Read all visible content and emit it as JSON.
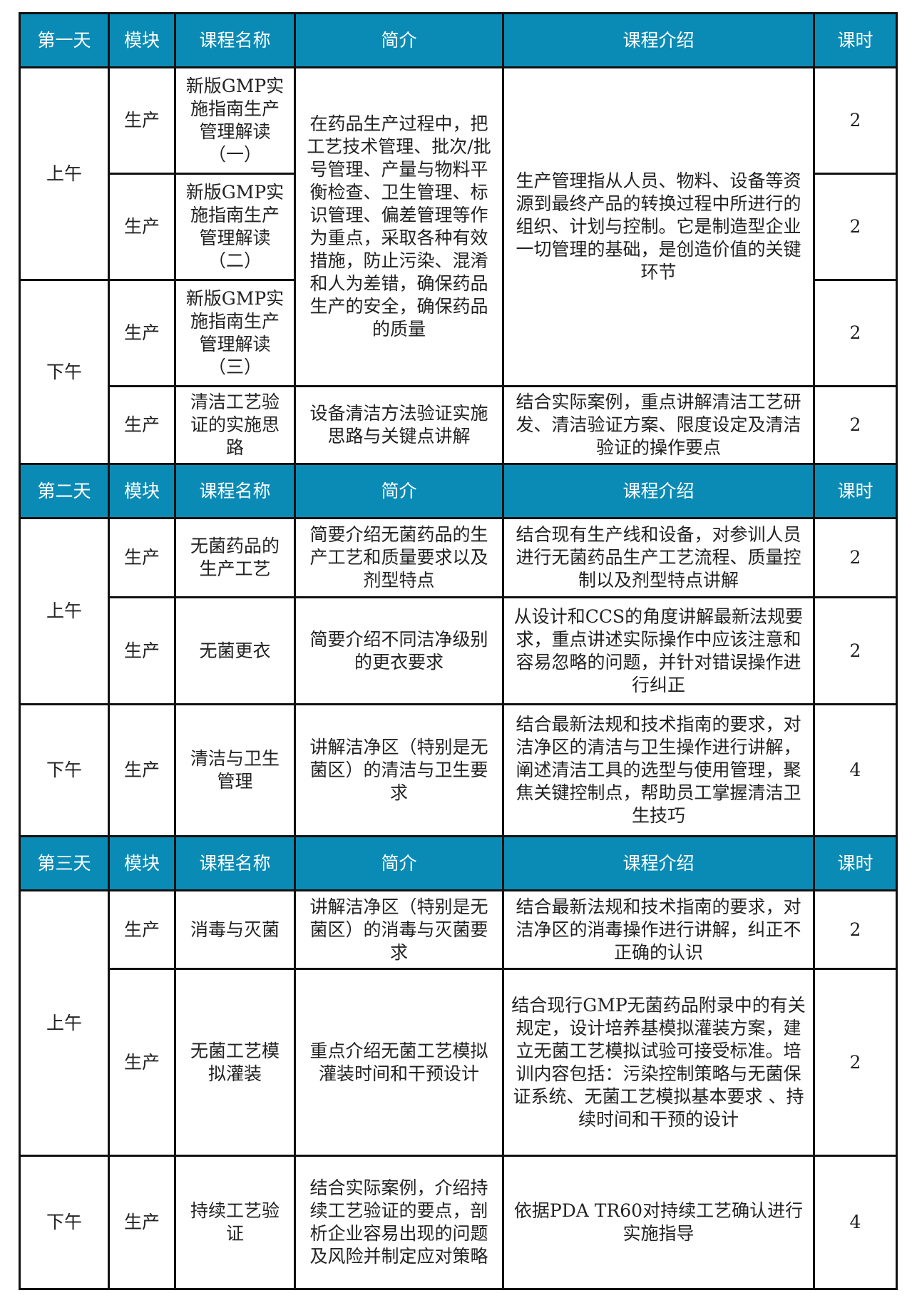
{
  "header_color": "#0a8bb5",
  "columns": [
    "模块",
    "课程名称",
    "简介",
    "课程介绍",
    "课时"
  ],
  "days": [
    {
      "label": "第一天",
      "rows": [
        {
          "period": "上午",
          "period_span": 2,
          "module": "生产",
          "course": "新版GMP实施指南生产管理解读（一）",
          "summary": "在药品生产过程中，把工艺技术管理、批次/批号管理、产量与物料平衡检查、卫生管理、标识管理、偏差管理等作为重点，采取各种有效措施，防止污染、混淆和人为差错，确保药品生产的安全，确保药品的质量",
          "summary_span": 3,
          "detail": "生产管理指从人员、物料、设备等资源到最终产品的转换过程中所进行的组织、计划与控制。它是制造型企业一切管理的基础，是创造价值的关键环节",
          "detail_span": 3,
          "hours": "2"
        },
        {
          "module": "生产",
          "course": "新版GMP实施指南生产管理解读（二）",
          "hours": "2"
        },
        {
          "period": "下午",
          "period_span": 2,
          "module": "生产",
          "course": "新版GMP实施指南生产管理解读（三）",
          "hours": "2"
        },
        {
          "module": "生产",
          "course": "清洁工艺验证的实施思路",
          "summary": "设备清洁方法验证实施思路与关键点讲解",
          "summary_span": 1,
          "detail": "结合实际案例，重点讲解清洁工艺研发、清洁验证方案、限度设定及清洁验证的操作要点",
          "detail_span": 1,
          "hours": "2"
        }
      ]
    },
    {
      "label": "第二天",
      "rows": [
        {
          "period": "上午",
          "period_span": 2,
          "module": "生产",
          "course": "无菌药品的生产工艺",
          "summary": "简要介绍无菌药品的生产工艺和质量要求以及剂型特点",
          "summary_span": 1,
          "detail": "结合现有生产线和设备，对参训人员进行无菌药品生产工艺流程、质量控制以及剂型特点讲解",
          "detail_span": 1,
          "hours": "2"
        },
        {
          "module": "生产",
          "course": "无菌更衣",
          "summary": "简要介绍不同洁净级别的更衣要求",
          "summary_span": 1,
          "detail": "从设计和CCS的角度讲解最新法规要求，重点讲述实际操作中应该注意和容易忽略的问题，并针对错误操作进行纠正",
          "detail_span": 1,
          "hours": "2"
        },
        {
          "period": "下午",
          "period_span": 1,
          "module": "生产",
          "course": "清洁与卫生管理",
          "summary": "讲解洁净区（特别是无菌区）的清洁与卫生要求",
          "summary_span": 1,
          "detail": "结合最新法规和技术指南的要求，对洁净区的清洁与卫生操作进行讲解，阐述清洁工具的选型与使用管理，聚焦关键控制点，帮助员工掌握清洁卫生技巧",
          "detail_span": 1,
          "hours": "4"
        }
      ]
    },
    {
      "label": "第三天",
      "rows": [
        {
          "period": "上午",
          "period_span": 2,
          "module": "生产",
          "course": "消毒与灭菌",
          "summary": "讲解洁净区（特别是无菌区）的消毒与灭菌要求",
          "summary_span": 1,
          "detail": "结合最新法规和技术指南的要求，对洁净区的消毒操作进行讲解，纠正不正确的认识",
          "detail_span": 1,
          "hours": "2"
        },
        {
          "module": "生产",
          "course": "无菌工艺模拟灌装",
          "summary": "重点介绍无菌工艺模拟灌装时间和干预设计",
          "summary_span": 1,
          "detail": "结合现行GMP无菌药品附录中的有关规定，设计培养基模拟灌装方案，建立无菌工艺模拟试验可接受标准。培训内容包括：污染控制策略与无菌保证系统、无菌工艺模拟基本要求 、持续时间和干预的设计",
          "detail_span": 1,
          "hours": "2"
        },
        {
          "period": "下午",
          "period_span": 1,
          "module": "生产",
          "course": "持续工艺验证",
          "summary": "结合实际案例，介绍持续工艺验证的要点，剖析企业容易出现的问题及风险并制定应对策略",
          "summary_span": 1,
          "detail": "依据PDA TR60对持续工艺确认进行实施指导",
          "detail_span": 1,
          "hours": "4"
        }
      ]
    }
  ]
}
